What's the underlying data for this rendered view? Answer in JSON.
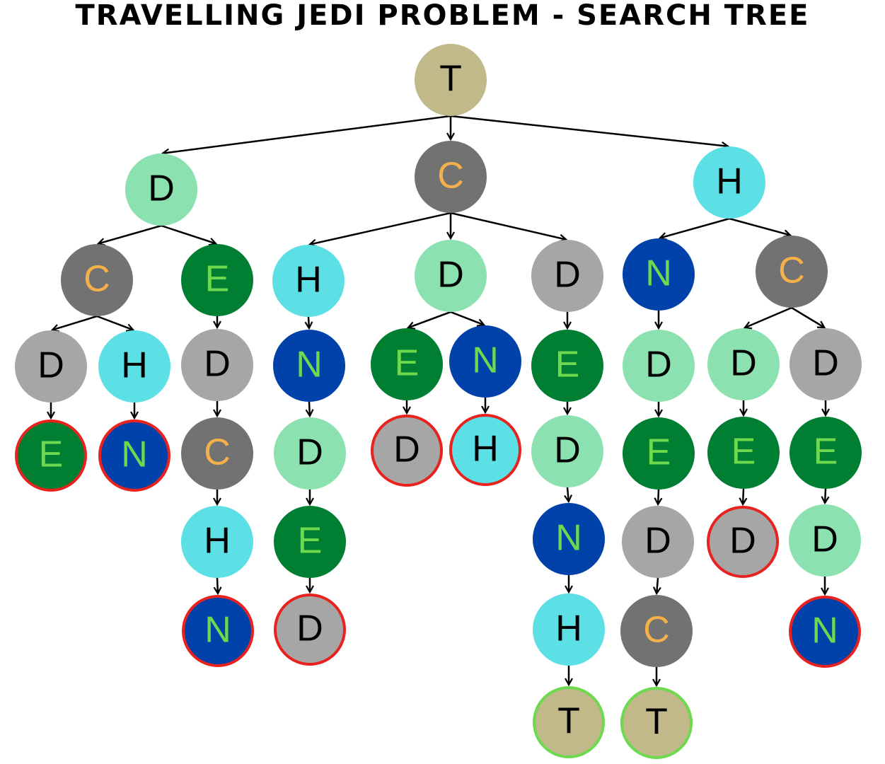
{
  "title": "TRAVELLING JEDI PROBLEM - SEARCH TREE",
  "colors": {
    "T": {
      "fill": "#c2b98a",
      "text": "#000000"
    },
    "C": {
      "fill": "#727272",
      "text": "#f5b04a"
    },
    "H": {
      "fill": "#5ce0e6",
      "text": "#000000"
    },
    "N": {
      "fill": "#0041aa",
      "text": "#6dd94e"
    },
    "E": {
      "fill": "#007f33",
      "text": "#6dd94e"
    },
    "Dlight": {
      "fill": "#8ce1b0",
      "text": "#000000"
    },
    "Dgray": {
      "fill": "#a6a6a6",
      "text": "#000000"
    },
    "dead_end_ring": "#e8221e",
    "goal_ring": "#6dd94e",
    "edge": "#000000"
  },
  "nodes": [
    {
      "id": "n0",
      "label": "T",
      "style": "T"
    },
    {
      "id": "n1",
      "label": "D",
      "style": "Dlight",
      "parent": "n0"
    },
    {
      "id": "n2",
      "label": "C",
      "style": "C",
      "parent": "n0"
    },
    {
      "id": "n3",
      "label": "H",
      "style": "H",
      "parent": "n0"
    },
    {
      "id": "n4",
      "label": "C",
      "style": "C",
      "parent": "n1"
    },
    {
      "id": "n5",
      "label": "E",
      "style": "E",
      "parent": "n1"
    },
    {
      "id": "n6",
      "label": "D",
      "style": "Dgray",
      "parent": "n4"
    },
    {
      "id": "n7",
      "label": "H",
      "style": "H",
      "parent": "n4"
    },
    {
      "id": "n8",
      "label": "E",
      "style": "E",
      "parent": "n6",
      "ring": "dead"
    },
    {
      "id": "n9",
      "label": "N",
      "style": "N",
      "parent": "n7",
      "ring": "dead"
    },
    {
      "id": "n10",
      "label": "D",
      "style": "Dgray",
      "parent": "n5"
    },
    {
      "id": "n11",
      "label": "C",
      "style": "C",
      "parent": "n10"
    },
    {
      "id": "n12",
      "label": "H",
      "style": "H",
      "parent": "n11"
    },
    {
      "id": "n13",
      "label": "N",
      "style": "N",
      "parent": "n12",
      "ring": "dead"
    },
    {
      "id": "n14",
      "label": "H",
      "style": "H",
      "parent": "n2"
    },
    {
      "id": "n15",
      "label": "N",
      "style": "N",
      "parent": "n14"
    },
    {
      "id": "n16",
      "label": "D",
      "style": "Dlight",
      "parent": "n15"
    },
    {
      "id": "n17",
      "label": "E",
      "style": "E",
      "parent": "n16"
    },
    {
      "id": "n18",
      "label": "D",
      "style": "Dgray",
      "parent": "n17",
      "ring": "dead"
    },
    {
      "id": "n19",
      "label": "D",
      "style": "Dlight",
      "parent": "n2"
    },
    {
      "id": "n20",
      "label": "E",
      "style": "E",
      "parent": "n19"
    },
    {
      "id": "n21",
      "label": "N",
      "style": "N",
      "parent": "n19"
    },
    {
      "id": "n22",
      "label": "D",
      "style": "Dgray",
      "parent": "n20",
      "ring": "dead"
    },
    {
      "id": "n23",
      "label": "H",
      "style": "H",
      "parent": "n21",
      "ring": "dead"
    },
    {
      "id": "n24",
      "label": "D",
      "style": "Dgray",
      "parent": "n2"
    },
    {
      "id": "n25",
      "label": "E",
      "style": "E",
      "parent": "n24"
    },
    {
      "id": "n26",
      "label": "D",
      "style": "Dlight",
      "parent": "n25"
    },
    {
      "id": "n27",
      "label": "N",
      "style": "N",
      "parent": "n26"
    },
    {
      "id": "n28",
      "label": "H",
      "style": "H",
      "parent": "n27"
    },
    {
      "id": "n29",
      "label": "T",
      "style": "T",
      "parent": "n28",
      "ring": "goal"
    },
    {
      "id": "n30",
      "label": "N",
      "style": "N",
      "parent": "n3"
    },
    {
      "id": "n31",
      "label": "C",
      "style": "C",
      "parent": "n3"
    },
    {
      "id": "n32",
      "label": "D",
      "style": "Dlight",
      "parent": "n30"
    },
    {
      "id": "n33",
      "label": "E",
      "style": "E",
      "parent": "n32"
    },
    {
      "id": "n34",
      "label": "D",
      "style": "Dgray",
      "parent": "n33"
    },
    {
      "id": "n35",
      "label": "C",
      "style": "C",
      "parent": "n34"
    },
    {
      "id": "n36",
      "label": "T",
      "style": "T",
      "parent": "n35",
      "ring": "goal"
    },
    {
      "id": "n37",
      "label": "D",
      "style": "Dlight",
      "parent": "n31"
    },
    {
      "id": "n38",
      "label": "D",
      "style": "Dgray",
      "parent": "n31"
    },
    {
      "id": "n39",
      "label": "E",
      "style": "E",
      "parent": "n37"
    },
    {
      "id": "n40",
      "label": "D",
      "style": "Dgray",
      "parent": "n39",
      "ring": "dead"
    },
    {
      "id": "n41",
      "label": "E",
      "style": "E",
      "parent": "n38"
    },
    {
      "id": "n42",
      "label": "D",
      "style": "Dlight",
      "parent": "n41"
    },
    {
      "id": "n43",
      "label": "N",
      "style": "N",
      "parent": "n42",
      "ring": "dead"
    }
  ]
}
